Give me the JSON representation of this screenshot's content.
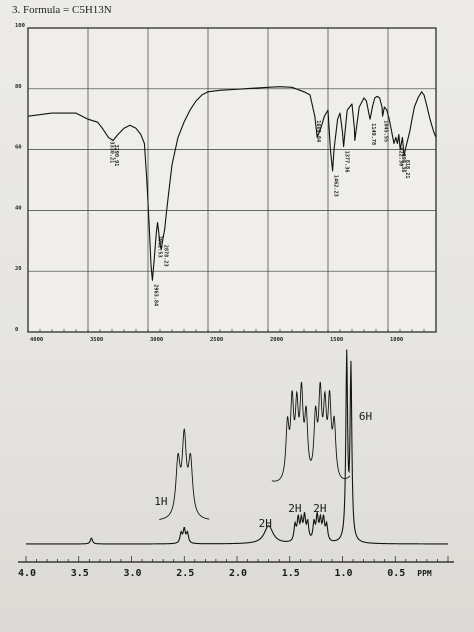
{
  "page": {
    "title": "3.  Formula = C5H13N"
  },
  "chart_data": [
    {
      "type": "line",
      "title": "",
      "xlabel": "",
      "ylabel": "",
      "xlim": [
        4000,
        600
      ],
      "ylim": [
        0,
        100
      ],
      "x_ticks": [
        "4000",
        "3500",
        "3000",
        "2500",
        "2000",
        "1500",
        "1000"
      ],
      "x_tick_values": [
        4000,
        3500,
        3000,
        2500,
        2000,
        1500,
        1000
      ],
      "y_ticks": [
        "0",
        "20",
        "40",
        "60",
        "80",
        "100"
      ],
      "y_tick_values": [
        0,
        20,
        40,
        60,
        80,
        100
      ],
      "grid": true,
      "series": [
        {
          "x": [
            4000,
            3800,
            3600,
            3500,
            3420,
            3380,
            3330,
            3291,
            3250,
            3200,
            3150,
            3100,
            3060,
            3030,
            3010,
            2990,
            2975,
            2963,
            2950,
            2930,
            2920,
            2900,
            2890,
            2878,
            2860,
            2850,
            2830,
            2800,
            2750,
            2700,
            2650,
            2600,
            2550,
            2500,
            2400,
            2200,
            2000,
            1900,
            1800,
            1700,
            1650,
            1610,
            1590,
            1560,
            1530,
            1500,
            1480,
            1462,
            1450,
            1420,
            1400,
            1380,
            1370,
            1360,
            1340,
            1300,
            1280,
            1277,
            1260,
            1240,
            1200,
            1180,
            1160,
            1149,
            1130,
            1110,
            1090,
            1070,
            1050,
            1045,
            1030,
            1010,
            990,
            970,
            950,
            935,
            922,
            910,
            898,
            880,
            866,
            850,
            818,
            800,
            780,
            750,
            720,
            700,
            680,
            650,
            620,
            600
          ],
          "y": [
            71,
            72,
            72,
            70,
            69,
            67,
            64,
            63,
            65,
            67,
            68,
            67,
            65,
            62,
            50,
            35,
            22,
            17,
            23,
            33,
            36,
            29,
            27,
            30,
            34,
            38,
            45,
            55,
            64,
            69,
            73,
            76,
            78,
            79,
            79.5,
            80,
            80.5,
            80.7,
            80.5,
            79,
            78,
            71,
            64,
            67,
            71,
            73,
            60,
            53,
            60,
            70,
            72,
            66,
            61,
            65,
            73,
            75,
            67,
            63,
            68,
            74,
            77,
            76,
            72,
            70,
            74,
            77,
            77.5,
            77,
            74,
            71,
            74,
            73,
            70,
            66,
            62,
            64,
            62,
            65,
            60,
            64,
            58,
            61,
            66,
            70,
            74,
            77,
            79,
            78,
            75,
            70,
            66,
            64
          ]
        }
      ],
      "annotations": [
        {
          "label": "3330.21",
          "x": 3330
        },
        {
          "label": "3290.91",
          "x": 3291
        },
        {
          "label": "2963.84",
          "x": 2963
        },
        {
          "label": "2962.53",
          "x": 2930
        },
        {
          "label": "2878.23",
          "x": 2878
        },
        {
          "label": "1609.84",
          "x": 1610
        },
        {
          "label": "1462.23",
          "x": 1462
        },
        {
          "label": "1377.36",
          "x": 1370
        },
        {
          "label": "1149.78",
          "x": 1149
        },
        {
          "label": "1045.55",
          "x": 1045
        },
        {
          "label": "922.30",
          "x": 922
        },
        {
          "label": "898.36",
          "x": 898
        },
        {
          "label": "818.21",
          "x": 866
        }
      ]
    },
    {
      "type": "line",
      "title": "",
      "xlabel": "",
      "ylabel": "",
      "xlim": [
        4.0,
        0.0
      ],
      "x_unit": "PPM",
      "x_ticks": [
        "4.0",
        "3.5",
        "3.0",
        "2.5",
        "2.0",
        "1.5",
        "1.0",
        "0.5"
      ],
      "x_tick_values": [
        4.0,
        3.5,
        3.0,
        2.5,
        2.0,
        1.5,
        1.0,
        0.5
      ],
      "peaks": [
        {
          "shift": 3.38,
          "height": 0.03,
          "width": 0.012
        },
        {
          "shift": 2.53,
          "height": 0.05,
          "width": 0.012
        },
        {
          "shift": 2.5,
          "height": 0.07,
          "width": 0.012
        },
        {
          "shift": 2.47,
          "height": 0.05,
          "width": 0.012
        },
        {
          "shift": 1.7,
          "height": 0.09,
          "width": 0.05
        },
        {
          "shift": 1.45,
          "height": 0.08,
          "width": 0.012
        },
        {
          "shift": 1.42,
          "height": 0.11,
          "width": 0.012
        },
        {
          "shift": 1.39,
          "height": 0.1,
          "width": 0.012
        },
        {
          "shift": 1.36,
          "height": 0.12,
          "width": 0.012
        },
        {
          "shift": 1.33,
          "height": 0.09,
          "width": 0.012
        },
        {
          "shift": 1.27,
          "height": 0.09,
          "width": 0.012
        },
        {
          "shift": 1.24,
          "height": 0.12,
          "width": 0.012
        },
        {
          "shift": 1.21,
          "height": 0.1,
          "width": 0.012
        },
        {
          "shift": 1.18,
          "height": 0.11,
          "width": 0.012
        },
        {
          "shift": 1.15,
          "height": 0.08,
          "width": 0.012
        },
        {
          "shift": 0.96,
          "height": 0.92,
          "width": 0.01
        },
        {
          "shift": 0.92,
          "height": 0.86,
          "width": 0.01
        }
      ],
      "integration_labels": [
        {
          "label": "1H",
          "shift": 2.5
        },
        {
          "label": "2H",
          "shift": 1.7
        },
        {
          "label": "2H",
          "shift": 1.4
        },
        {
          "label": "2H",
          "shift": 1.22
        },
        {
          "label": "6H",
          "shift": 0.94
        }
      ],
      "insets": [
        {
          "label": "1H",
          "shift_range": [
            2.62,
            2.38
          ],
          "scale": 5.5
        },
        {
          "label": "2H 2H",
          "shift_range": [
            1.55,
            1.05
          ],
          "scale": 3.4
        }
      ]
    }
  ]
}
